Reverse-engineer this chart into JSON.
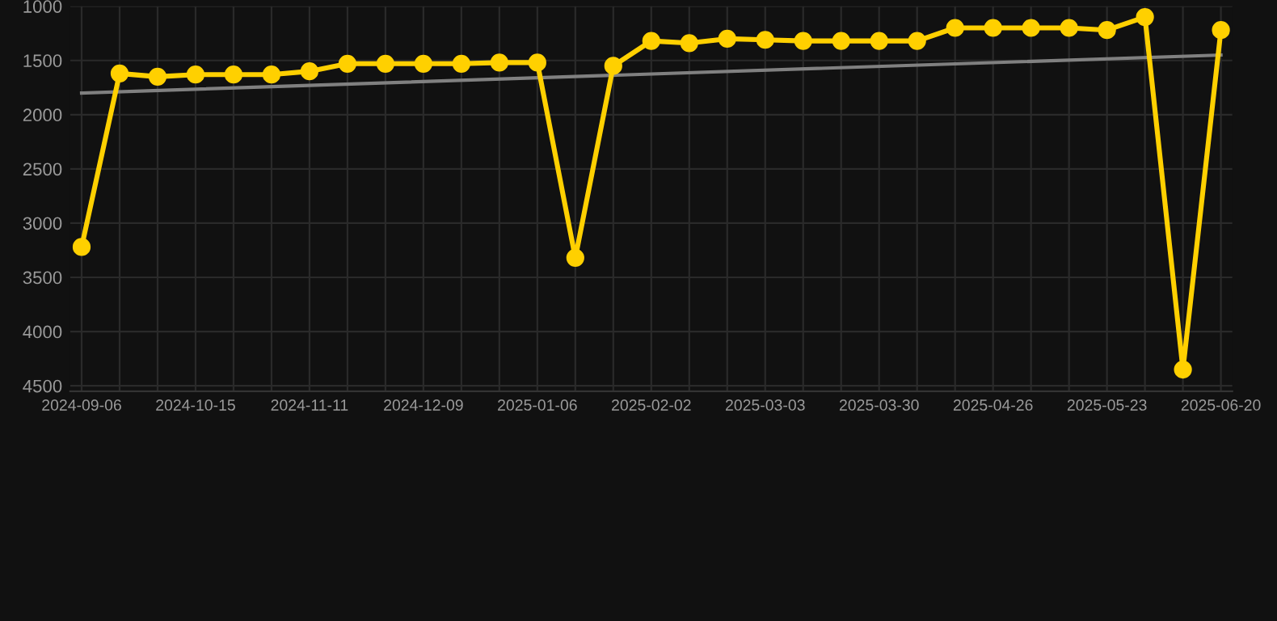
{
  "chart_data": {
    "type": "line",
    "categories": [
      "2024-09-06",
      null,
      null,
      "2024-10-15",
      null,
      null,
      "2024-11-11",
      null,
      null,
      "2024-12-09",
      null,
      null,
      "2025-01-06",
      null,
      null,
      "2025-02-02",
      null,
      null,
      "2025-03-03",
      null,
      null,
      "2025-03-30",
      null,
      null,
      "2025-04-26",
      null,
      null,
      "2025-05-23",
      null,
      null,
      "2025-06-20"
    ],
    "series": [
      {
        "color": "#ffd000",
        "marker": "circle",
        "values": [
          3220,
          1620,
          1650,
          1630,
          1630,
          1630,
          1600,
          1530,
          1530,
          1530,
          1530,
          1520,
          1520,
          3320,
          1550,
          1320,
          1340,
          1300,
          1310,
          1320,
          1320,
          1320,
          1320,
          1200,
          1200,
          1200,
          1200,
          1220,
          1100,
          4350,
          1220
        ]
      },
      {
        "color": "#808080",
        "marker": "none",
        "values": [
          1800,
          null,
          null,
          null,
          null,
          null,
          null,
          null,
          null,
          null,
          null,
          null,
          null,
          null,
          null,
          null,
          null,
          null,
          null,
          null,
          null,
          null,
          null,
          null,
          null,
          null,
          null,
          null,
          null,
          null,
          1450
        ]
      }
    ],
    "ylim": [
      4550,
      1000
    ],
    "yticks": [
      1000,
      1500,
      2000,
      2500,
      3000,
      3500,
      4000,
      4500
    ],
    "grid": true,
    "line_style": "solid"
  }
}
